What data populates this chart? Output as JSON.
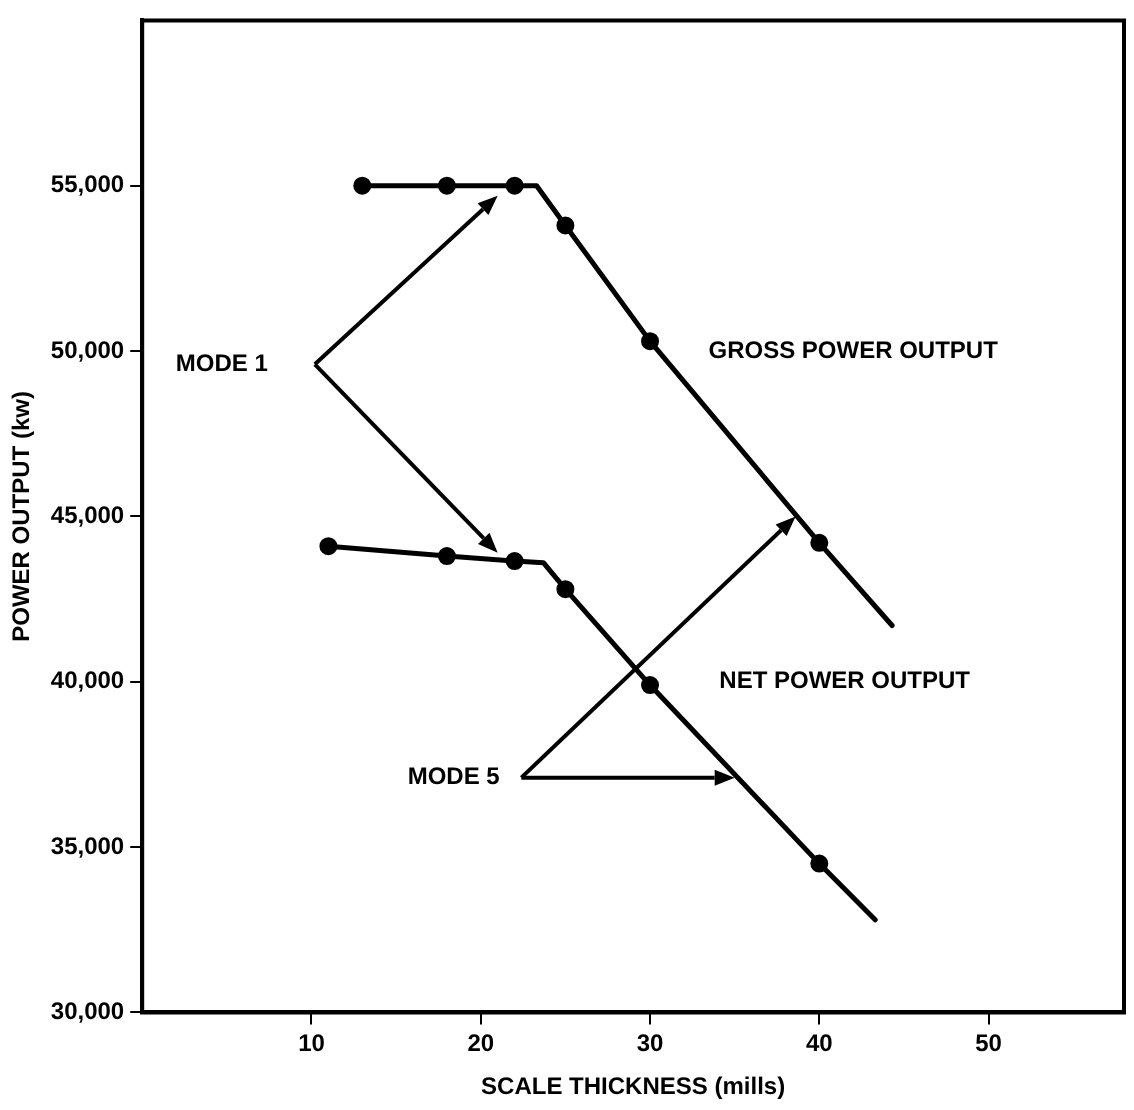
{
  "chart_data": {
    "type": "line",
    "xlabel": "SCALE THICKNESS (mills)",
    "ylabel": "POWER OUTPUT (kw)",
    "xlim": [
      0,
      58
    ],
    "xticks": [
      10,
      20,
      30,
      40,
      50
    ],
    "ylim": [
      30000,
      60000
    ],
    "yticks": [
      {
        "value": 30000,
        "label": "30,000"
      },
      {
        "value": 35000,
        "label": "35,000"
      },
      {
        "value": 40000,
        "label": "40,000"
      },
      {
        "value": 45000,
        "label": "45,000"
      },
      {
        "value": 50000,
        "label": "50,000"
      },
      {
        "value": 55000,
        "label": "55,000"
      }
    ],
    "grid": false,
    "legend": false,
    "series": [
      {
        "color": "#000000",
        "marker": "none",
        "x": [
          13,
          18,
          22,
          23.3,
          25,
          30,
          40,
          44.3
        ],
        "values": [
          55000,
          55000,
          55000,
          55000,
          53800,
          50300,
          44200,
          41700
        ]
      },
      {
        "type": "scatter",
        "color": "#000000",
        "marker": "circle",
        "x": [
          13,
          18,
          22,
          25,
          30,
          40
        ],
        "values": [
          55000,
          55000,
          55000,
          53800,
          50300,
          44200
        ]
      },
      {
        "color": "#000000",
        "marker": "none",
        "x": [
          11,
          18,
          22,
          23.7,
          25,
          30,
          40,
          43.3
        ],
        "values": [
          44100,
          43800,
          43650,
          43600,
          42800,
          39900,
          34500,
          32800
        ]
      },
      {
        "type": "scatter",
        "color": "#000000",
        "marker": "circle",
        "x": [
          11,
          18,
          22,
          25,
          30,
          40
        ],
        "values": [
          44100,
          43800,
          43650,
          42800,
          39900,
          34500
        ]
      }
    ],
    "annotations": [
      "GROSS POWER OUTPUT",
      "NET POWER OUTPUT",
      "MODE 1",
      "MODE 5"
    ]
  }
}
